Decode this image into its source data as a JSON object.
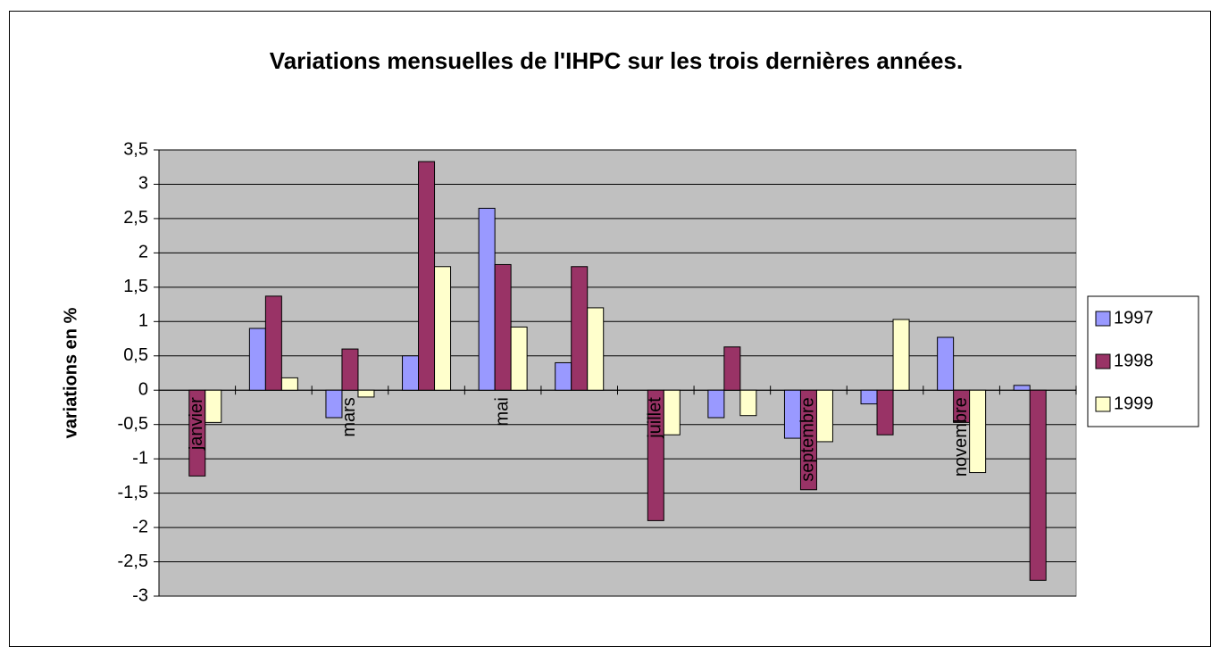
{
  "chart_data": {
    "type": "bar",
    "title": "Variations mensuelles de l'IHPC sur les trois dernières années.",
    "y_label": "variations en %",
    "categories": [
      "janvier",
      null,
      "mars",
      null,
      "mai",
      null,
      "juillet",
      null,
      "septembre",
      null,
      "novembre",
      null
    ],
    "series": [
      {
        "name": "1997",
        "color": "#9999ff",
        "values": [
          0,
          0.9,
          -0.4,
          0.5,
          2.65,
          0.4,
          0,
          -0.4,
          -0.7,
          -0.2,
          0.77,
          0.07
        ]
      },
      {
        "name": "1998",
        "color": "#993366",
        "values": [
          -1.25,
          1.37,
          0.6,
          3.33,
          1.83,
          1.8,
          -1.9,
          0.63,
          -1.45,
          -0.65,
          -0.47,
          -2.77
        ]
      },
      {
        "name": "1999",
        "color": "#ffffcc",
        "values": [
          -0.47,
          0.18,
          -0.1,
          1.8,
          0.92,
          1.2,
          -0.65,
          -0.37,
          -0.75,
          1.03,
          -1.2,
          null
        ]
      }
    ],
    "ylim": [
      -3,
      3.5
    ],
    "yticks": [
      -3,
      {
        "value": -2.5,
        "label": "-2,5"
      },
      -2,
      {
        "value": -1.5,
        "label": "-1,5"
      },
      -1,
      {
        "value": -0.5,
        "label": "-0,5"
      },
      0,
      {
        "value": 0.5,
        "label": "0,5"
      },
      1,
      {
        "value": 1.5,
        "label": "1,5"
      },
      2,
      {
        "value": 2.5,
        "label": "2,5"
      },
      3,
      {
        "value": 3.5,
        "label": "3,5"
      }
    ],
    "grid": true,
    "legend": "right"
  }
}
